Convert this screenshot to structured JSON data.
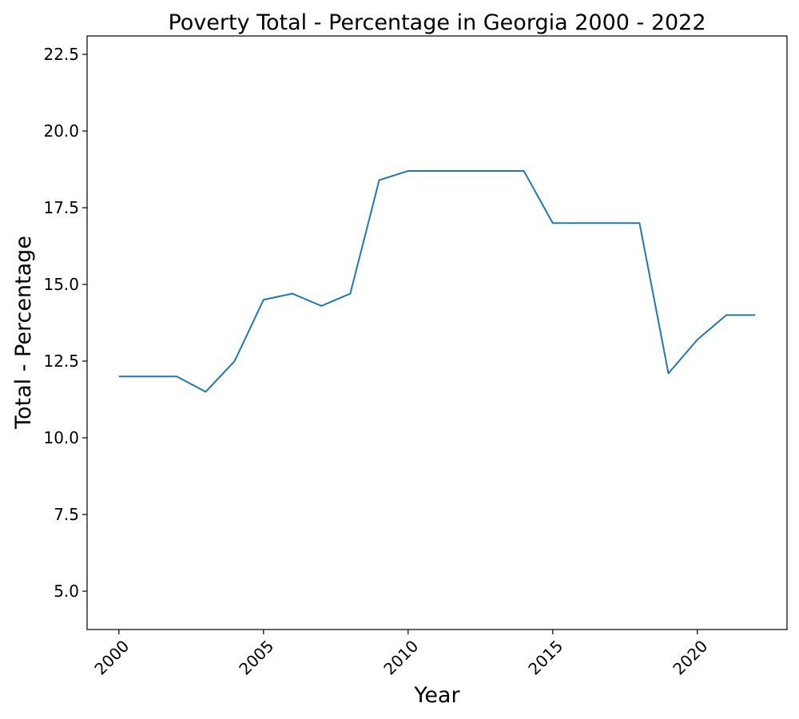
{
  "chart_data": {
    "type": "line",
    "title": "Poverty Total - Percentage in Georgia 2000 - 2022",
    "xlabel": "Year",
    "ylabel": "Total - Percentage",
    "x": [
      2000,
      2001,
      2002,
      2003,
      2004,
      2005,
      2006,
      2007,
      2008,
      2009,
      2010,
      2011,
      2012,
      2013,
      2014,
      2015,
      2016,
      2017,
      2018,
      2019,
      2020,
      2021,
      2022
    ],
    "series": [
      {
        "values": [
          12.0,
          12.0,
          12.0,
          11.5,
          12.5,
          14.5,
          14.7,
          14.3,
          14.7,
          18.4,
          18.7,
          18.7,
          18.7,
          18.7,
          18.7,
          17.0,
          17.0,
          17.0,
          17.0,
          12.1,
          13.2,
          14.0,
          14.0
        ],
        "color": "#1f77b4"
      }
    ],
    "xlim": [
      1998.9,
      2023.1
    ],
    "ylim": [
      3.75,
      23.1
    ],
    "x_ticks": [
      "2000",
      "2005",
      "2010",
      "2015",
      "2020"
    ],
    "y_ticks": [
      "5.0",
      "7.5",
      "10.0",
      "12.5",
      "15.0",
      "17.5",
      "20.0",
      "22.5"
    ],
    "x_tick_rotation": "45 degrees",
    "grid": false,
    "legend": "none"
  }
}
